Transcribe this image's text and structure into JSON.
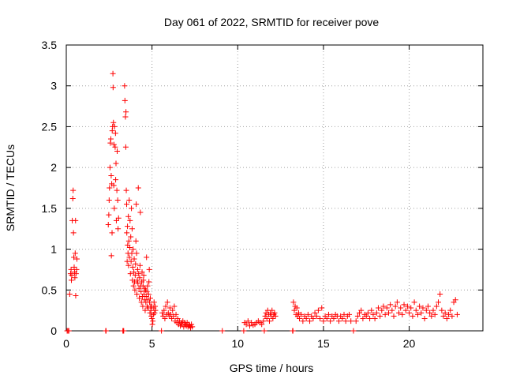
{
  "chart_data": {
    "type": "scatter",
    "title": "Day 061 of 2022, SRMTID for receiver pove",
    "xlabel": "GPS time / hours",
    "ylabel": "SRMTID / TECUs",
    "xlim": [
      0,
      24.3
    ],
    "ylim": [
      0,
      3.5
    ],
    "xticks": [
      0,
      5,
      10,
      15,
      20
    ],
    "xtick_labels": [
      "0",
      "5",
      "10",
      "15",
      "20"
    ],
    "yticks": [
      0,
      0.5,
      1,
      1.5,
      2,
      2.5,
      3,
      3.5
    ],
    "ytick_labels": [
      "0",
      "0.5",
      "1",
      "1.5",
      "2",
      "2.5",
      "3",
      "3.5"
    ],
    "grid": true,
    "marker": "plus",
    "color": "#ff0000",
    "series": [
      {
        "name": "SRMTID",
        "points": [
          [
            0.05,
            0.0
          ],
          [
            0.1,
            0.0
          ],
          [
            0.15,
            0.0
          ],
          [
            0.2,
            0.45
          ],
          [
            0.25,
            0.7
          ],
          [
            0.28,
            0.75
          ],
          [
            0.3,
            0.62
          ],
          [
            0.32,
            0.68
          ],
          [
            0.35,
            1.35
          ],
          [
            0.38,
            1.62
          ],
          [
            0.4,
            1.72
          ],
          [
            0.42,
            1.2
          ],
          [
            0.44,
            0.9
          ],
          [
            0.46,
            0.78
          ],
          [
            0.48,
            0.72
          ],
          [
            0.5,
            0.65
          ],
          [
            0.52,
            0.95
          ],
          [
            0.54,
            1.35
          ],
          [
            0.55,
            0.43
          ],
          [
            0.57,
            0.7
          ],
          [
            0.6,
            0.75
          ],
          [
            0.62,
            0.88
          ],
          [
            2.3,
            0.0
          ],
          [
            2.32,
            0.0
          ],
          [
            2.45,
            1.3
          ],
          [
            2.48,
            1.42
          ],
          [
            2.5,
            1.6
          ],
          [
            2.52,
            1.75
          ],
          [
            2.55,
            2.0
          ],
          [
            2.57,
            2.3
          ],
          [
            2.6,
            2.35
          ],
          [
            2.62,
            1.9
          ],
          [
            2.63,
            0.92
          ],
          [
            2.65,
            1.8
          ],
          [
            2.67,
            1.2
          ],
          [
            2.68,
            2.45
          ],
          [
            2.7,
            2.5
          ],
          [
            2.72,
            3.15
          ],
          [
            2.73,
            2.98
          ],
          [
            2.75,
            2.55
          ],
          [
            2.77,
            1.78
          ],
          [
            2.78,
            2.28
          ],
          [
            2.8,
            1.5
          ],
          [
            2.82,
            2.5
          ],
          [
            2.85,
            2.25
          ],
          [
            2.87,
            2.42
          ],
          [
            2.88,
            1.85
          ],
          [
            2.9,
            2.05
          ],
          [
            2.92,
            1.35
          ],
          [
            2.95,
            1.72
          ],
          [
            2.97,
            2.2
          ],
          [
            3.0,
            1.6
          ],
          [
            3.02,
            1.25
          ],
          [
            3.05,
            1.38
          ],
          [
            3.3,
            0.0
          ],
          [
            3.32,
            0.0
          ],
          [
            3.35,
            0.0
          ],
          [
            3.4,
            3.0
          ],
          [
            3.42,
            2.82
          ],
          [
            3.45,
            2.62
          ],
          [
            3.47,
            2.25
          ],
          [
            3.48,
            2.68
          ],
          [
            3.5,
            1.72
          ],
          [
            3.52,
            1.55
          ],
          [
            3.53,
            1.2
          ],
          [
            3.55,
            0.85
          ],
          [
            3.57,
            1.28
          ],
          [
            3.58,
            1.05
          ],
          [
            3.6,
            0.95
          ],
          [
            3.62,
            1.4
          ],
          [
            3.63,
            0.8
          ],
          [
            3.65,
            1.1
          ],
          [
            3.67,
            1.6
          ],
          [
            3.68,
            0.9
          ],
          [
            3.7,
            1.02
          ],
          [
            3.72,
            1.35
          ],
          [
            3.74,
            0.7
          ],
          [
            3.76,
            1.15
          ],
          [
            3.78,
            0.85
          ],
          [
            3.8,
            1.5
          ],
          [
            3.82,
            0.95
          ],
          [
            3.84,
            1.25
          ],
          [
            3.86,
            0.62
          ],
          [
            3.88,
            0.78
          ],
          [
            3.9,
            1.0
          ],
          [
            3.92,
            0.55
          ],
          [
            3.94,
            0.72
          ],
          [
            3.96,
            0.88
          ],
          [
            3.98,
            0.6
          ],
          [
            4.0,
            0.5
          ],
          [
            4.02,
            0.68
          ],
          [
            4.04,
            0.82
          ],
          [
            4.06,
            1.1
          ],
          [
            4.08,
            1.55
          ],
          [
            4.1,
            0.95
          ],
          [
            4.12,
            0.45
          ],
          [
            4.14,
            0.62
          ],
          [
            4.16,
            0.75
          ],
          [
            4.18,
            0.58
          ],
          [
            4.2,
            1.75
          ],
          [
            4.22,
            0.7
          ],
          [
            4.24,
            0.52
          ],
          [
            4.26,
            0.4
          ],
          [
            4.28,
            0.65
          ],
          [
            4.3,
            0.8
          ],
          [
            4.32,
            1.45
          ],
          [
            4.34,
            0.55
          ],
          [
            4.36,
            0.48
          ],
          [
            4.38,
            0.35
          ],
          [
            4.4,
            0.6
          ],
          [
            4.42,
            0.72
          ],
          [
            4.44,
            0.42
          ],
          [
            4.46,
            0.3
          ],
          [
            4.48,
            0.55
          ],
          [
            4.5,
            0.62
          ],
          [
            4.52,
            0.68
          ],
          [
            4.54,
            0.45
          ],
          [
            4.56,
            0.38
          ],
          [
            4.58,
            0.52
          ],
          [
            4.6,
            0.25
          ],
          [
            4.62,
            0.5
          ],
          [
            4.64,
            0.35
          ],
          [
            4.66,
            0.42
          ],
          [
            4.68,
            0.9
          ],
          [
            4.7,
            0.48
          ],
          [
            4.72,
            0.3
          ],
          [
            4.74,
            0.55
          ],
          [
            4.76,
            0.38
          ],
          [
            4.78,
            0.28
          ],
          [
            4.8,
            0.45
          ],
          [
            4.82,
            0.6
          ],
          [
            4.84,
            0.75
          ],
          [
            4.86,
            0.35
          ],
          [
            4.88,
            0.22
          ],
          [
            4.9,
            0.4
          ],
          [
            4.92,
            0.3
          ],
          [
            4.94,
            0.25
          ],
          [
            4.96,
            0.18
          ],
          [
            4.98,
            0.3
          ],
          [
            5.0,
            0.15
          ],
          [
            5.02,
            0.08
          ],
          [
            5.05,
            0.12
          ],
          [
            5.08,
            0.2
          ],
          [
            5.1,
            0.28
          ],
          [
            5.12,
            0.35
          ],
          [
            5.15,
            0.22
          ],
          [
            5.18,
            0.3
          ],
          [
            5.2,
            0.25
          ],
          [
            5.55,
            0.0
          ],
          [
            5.6,
            0.22
          ],
          [
            5.65,
            0.18
          ],
          [
            5.7,
            0.25
          ],
          [
            5.75,
            0.15
          ],
          [
            5.8,
            0.3
          ],
          [
            5.85,
            0.2
          ],
          [
            5.9,
            0.35
          ],
          [
            5.95,
            0.22
          ],
          [
            6.0,
            0.18
          ],
          [
            6.05,
            0.28
          ],
          [
            6.1,
            0.2
          ],
          [
            6.15,
            0.15
          ],
          [
            6.2,
            0.25
          ],
          [
            6.25,
            0.18
          ],
          [
            6.3,
            0.3
          ],
          [
            6.35,
            0.12
          ],
          [
            6.4,
            0.2
          ],
          [
            6.45,
            0.1
          ],
          [
            6.5,
            0.15
          ],
          [
            6.55,
            0.08
          ],
          [
            6.6,
            0.12
          ],
          [
            6.65,
            0.06
          ],
          [
            6.7,
            0.1
          ],
          [
            6.75,
            0.08
          ],
          [
            6.8,
            0.12
          ],
          [
            6.85,
            0.05
          ],
          [
            6.9,
            0.1
          ],
          [
            6.95,
            0.08
          ],
          [
            7.0,
            0.06
          ],
          [
            7.05,
            0.1
          ],
          [
            7.1,
            0.05
          ],
          [
            7.15,
            0.08
          ],
          [
            7.2,
            0.06
          ],
          [
            7.25,
            0.04
          ],
          [
            7.3,
            0.08
          ],
          [
            7.35,
            0.05
          ],
          [
            9.1,
            0.0
          ],
          [
            10.35,
            0.0
          ],
          [
            10.4,
            0.1
          ],
          [
            10.5,
            0.08
          ],
          [
            10.6,
            0.12
          ],
          [
            10.7,
            0.06
          ],
          [
            10.8,
            0.1
          ],
          [
            10.9,
            0.07
          ],
          [
            11.0,
            0.08
          ],
          [
            11.1,
            0.1
          ],
          [
            11.2,
            0.12
          ],
          [
            11.3,
            0.1
          ],
          [
            11.4,
            0.08
          ],
          [
            11.5,
            0.12
          ],
          [
            11.55,
            0.0
          ],
          [
            11.6,
            0.18
          ],
          [
            11.65,
            0.22
          ],
          [
            11.7,
            0.15
          ],
          [
            11.75,
            0.25
          ],
          [
            11.8,
            0.2
          ],
          [
            11.85,
            0.12
          ],
          [
            11.9,
            0.22
          ],
          [
            11.95,
            0.18
          ],
          [
            12.0,
            0.25
          ],
          [
            12.05,
            0.15
          ],
          [
            12.1,
            0.2
          ],
          [
            12.15,
            0.22
          ],
          [
            12.2,
            0.18
          ],
          [
            13.2,
            0.0
          ],
          [
            13.22,
            0.0
          ],
          [
            13.25,
            0.35
          ],
          [
            13.3,
            0.25
          ],
          [
            13.35,
            0.3
          ],
          [
            13.4,
            0.2
          ],
          [
            13.45,
            0.28
          ],
          [
            13.5,
            0.18
          ],
          [
            13.55,
            0.22
          ],
          [
            13.6,
            0.15
          ],
          [
            13.7,
            0.2
          ],
          [
            13.8,
            0.12
          ],
          [
            13.9,
            0.18
          ],
          [
            14.0,
            0.15
          ],
          [
            14.1,
            0.2
          ],
          [
            14.2,
            0.12
          ],
          [
            14.3,
            0.18
          ],
          [
            14.4,
            0.15
          ],
          [
            14.5,
            0.22
          ],
          [
            14.6,
            0.18
          ],
          [
            14.7,
            0.25
          ],
          [
            14.8,
            0.15
          ],
          [
            14.9,
            0.28
          ],
          [
            15.0,
            0.12
          ],
          [
            15.1,
            0.18
          ],
          [
            15.2,
            0.15
          ],
          [
            15.3,
            0.2
          ],
          [
            15.4,
            0.12
          ],
          [
            15.5,
            0.18
          ],
          [
            15.6,
            0.15
          ],
          [
            15.7,
            0.2
          ],
          [
            15.8,
            0.18
          ],
          [
            15.9,
            0.12
          ],
          [
            16.0,
            0.18
          ],
          [
            16.1,
            0.15
          ],
          [
            16.2,
            0.2
          ],
          [
            16.3,
            0.12
          ],
          [
            16.4,
            0.18
          ],
          [
            16.5,
            0.2
          ],
          [
            16.6,
            0.12
          ],
          [
            16.75,
            0.0
          ],
          [
            16.9,
            0.12
          ],
          [
            17.0,
            0.18
          ],
          [
            17.1,
            0.22
          ],
          [
            17.2,
            0.25
          ],
          [
            17.3,
            0.15
          ],
          [
            17.4,
            0.2
          ],
          [
            17.5,
            0.18
          ],
          [
            17.6,
            0.22
          ],
          [
            17.7,
            0.15
          ],
          [
            17.8,
            0.25
          ],
          [
            17.9,
            0.2
          ],
          [
            18.0,
            0.15
          ],
          [
            18.1,
            0.22
          ],
          [
            18.2,
            0.28
          ],
          [
            18.3,
            0.18
          ],
          [
            18.4,
            0.25
          ],
          [
            18.5,
            0.3
          ],
          [
            18.6,
            0.2
          ],
          [
            18.7,
            0.28
          ],
          [
            18.8,
            0.22
          ],
          [
            18.9,
            0.32
          ],
          [
            19.0,
            0.25
          ],
          [
            19.1,
            0.18
          ],
          [
            19.2,
            0.3
          ],
          [
            19.3,
            0.35
          ],
          [
            19.4,
            0.22
          ],
          [
            19.5,
            0.28
          ],
          [
            19.6,
            0.2
          ],
          [
            19.7,
            0.32
          ],
          [
            19.8,
            0.25
          ],
          [
            19.9,
            0.3
          ],
          [
            20.0,
            0.22
          ],
          [
            20.1,
            0.28
          ],
          [
            20.2,
            0.18
          ],
          [
            20.3,
            0.35
          ],
          [
            20.4,
            0.25
          ],
          [
            20.5,
            0.2
          ],
          [
            20.6,
            0.3
          ],
          [
            20.7,
            0.22
          ],
          [
            20.8,
            0.28
          ],
          [
            20.9,
            0.15
          ],
          [
            21.0,
            0.25
          ],
          [
            21.1,
            0.3
          ],
          [
            21.2,
            0.22
          ],
          [
            21.3,
            0.18
          ],
          [
            21.4,
            0.25
          ],
          [
            21.5,
            0.2
          ],
          [
            21.6,
            0.3
          ],
          [
            21.7,
            0.35
          ],
          [
            21.8,
            0.45
          ],
          [
            21.9,
            0.25
          ],
          [
            22.0,
            0.18
          ],
          [
            22.1,
            0.22
          ],
          [
            22.2,
            0.15
          ],
          [
            22.3,
            0.2
          ],
          [
            22.4,
            0.25
          ],
          [
            22.5,
            0.18
          ],
          [
            22.6,
            0.35
          ],
          [
            22.7,
            0.38
          ],
          [
            22.8,
            0.2
          ]
        ]
      }
    ]
  }
}
